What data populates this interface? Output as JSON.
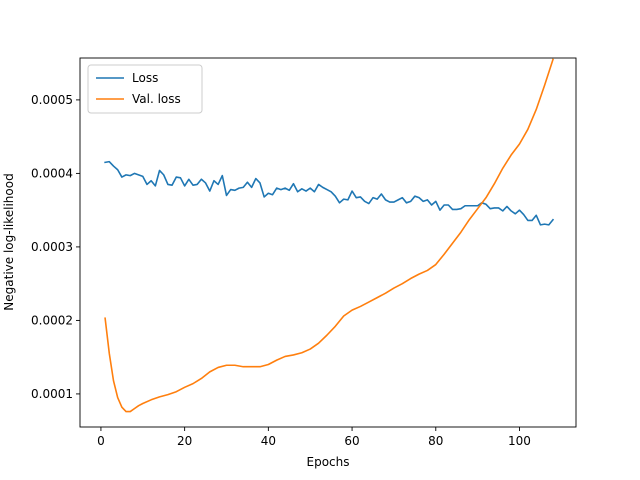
{
  "chart_data": {
    "type": "line",
    "title": "",
    "xlabel": "Epochs",
    "ylabel": "Negative log-likelihood",
    "xlim": [
      -5,
      113.5
    ],
    "ylim": [
      5.5e-05,
      0.000557
    ],
    "grid": false,
    "legend_position": "top-left",
    "xticks": [
      0,
      20,
      40,
      60,
      80,
      100
    ],
    "xtick_labels": [
      "0",
      "20",
      "40",
      "60",
      "80",
      "100"
    ],
    "yticks": [
      0.0001,
      0.0002,
      0.0003,
      0.0004,
      0.0005
    ],
    "ytick_labels": [
      "0.0001",
      "0.0002",
      "0.0003",
      "0.0004",
      "0.0005"
    ],
    "series": [
      {
        "name": "Loss",
        "color": "#1f77b4",
        "x": [
          1,
          2,
          3,
          4,
          5,
          6,
          7,
          8,
          9,
          10,
          11,
          12,
          13,
          14,
          15,
          16,
          17,
          18,
          19,
          20,
          21,
          22,
          23,
          24,
          25,
          26,
          27,
          28,
          29,
          30,
          31,
          32,
          33,
          34,
          35,
          36,
          37,
          38,
          39,
          40,
          41,
          42,
          43,
          44,
          45,
          46,
          47,
          48,
          49,
          50,
          51,
          52,
          53,
          54,
          55,
          56,
          57,
          58,
          59,
          60,
          61,
          62,
          63,
          64,
          65,
          66,
          67,
          68,
          69,
          70,
          71,
          72,
          73,
          74,
          75,
          76,
          77,
          78,
          79,
          80,
          81,
          82,
          83,
          84,
          85,
          86,
          87,
          88,
          89,
          90,
          91,
          92,
          93,
          94,
          95,
          96,
          97,
          98,
          99,
          100,
          101,
          102,
          103,
          104,
          105,
          106,
          107,
          108
        ],
        "y": [
          0.000415,
          0.000416,
          0.00041,
          0.000405,
          0.000395,
          0.000398,
          0.000397,
          0.0004,
          0.000398,
          0.000396,
          0.000385,
          0.00039,
          0.000383,
          0.000404,
          0.000398,
          0.000385,
          0.000384,
          0.000395,
          0.000394,
          0.000383,
          0.000392,
          0.000384,
          0.000385,
          0.000392,
          0.000387,
          0.000376,
          0.00039,
          0.000385,
          0.000397,
          0.00037,
          0.000378,
          0.000377,
          0.00038,
          0.000381,
          0.000388,
          0.000381,
          0.000393,
          0.000387,
          0.000368,
          0.000373,
          0.000371,
          0.00038,
          0.000378,
          0.00038,
          0.000377,
          0.000386,
          0.000375,
          0.000379,
          0.000376,
          0.00038,
          0.000375,
          0.000385,
          0.000381,
          0.000378,
          0.000375,
          0.000369,
          0.00036,
          0.000365,
          0.000364,
          0.000376,
          0.000367,
          0.000368,
          0.000362,
          0.000359,
          0.000367,
          0.000365,
          0.000372,
          0.000364,
          0.000361,
          0.000361,
          0.000364,
          0.000367,
          0.00036,
          0.000362,
          0.000369,
          0.000367,
          0.000362,
          0.000364,
          0.000357,
          0.000362,
          0.00035,
          0.000357,
          0.000357,
          0.000351,
          0.000351,
          0.000352,
          0.000356,
          0.000356,
          0.000356,
          0.000356,
          0.00036,
          0.000358,
          0.000352,
          0.000353,
          0.000353,
          0.000349,
          0.000355,
          0.000349,
          0.000345,
          0.00035,
          0.000344,
          0.000336,
          0.000336,
          0.000343,
          0.00033,
          0.000331,
          0.00033,
          0.000337
        ]
      },
      {
        "name": "Val. loss",
        "color": "#ff7f0e",
        "x": [
          1,
          2,
          3,
          4,
          5,
          6,
          7,
          8,
          9,
          10,
          12,
          14,
          16,
          18,
          20,
          22,
          24,
          26,
          28,
          30,
          32,
          34,
          36,
          38,
          40,
          42,
          44,
          46,
          48,
          50,
          52,
          54,
          56,
          58,
          60,
          62,
          64,
          66,
          68,
          70,
          72,
          74,
          76,
          78,
          80,
          82,
          84,
          86,
          88,
          90,
          92,
          94,
          96,
          98,
          100,
          102,
          104,
          106,
          108
        ],
        "y": [
          0.000203,
          0.000155,
          0.000118,
          9.5e-05,
          8.2e-05,
          7.6e-05,
          7.6e-05,
          8e-05,
          8.4e-05,
          8.7e-05,
          9.2e-05,
          9.6e-05,
          9.9e-05,
          0.000103,
          0.000109,
          0.000114,
          0.000121,
          0.00013,
          0.000136,
          0.000139,
          0.000139,
          0.000137,
          0.000137,
          0.000137,
          0.00014,
          0.000146,
          0.000151,
          0.000153,
          0.000156,
          0.000161,
          0.000169,
          0.00018,
          0.000192,
          0.000206,
          0.000214,
          0.000219,
          0.000225,
          0.000231,
          0.000237,
          0.000244,
          0.00025,
          0.000257,
          0.000263,
          0.000268,
          0.000276,
          0.00029,
          0.000305,
          0.00032,
          0.000337,
          0.000352,
          0.000367,
          0.000386,
          0.000407,
          0.000425,
          0.00044,
          0.00046,
          0.000487,
          0.00052,
          0.000555
        ]
      }
    ]
  }
}
